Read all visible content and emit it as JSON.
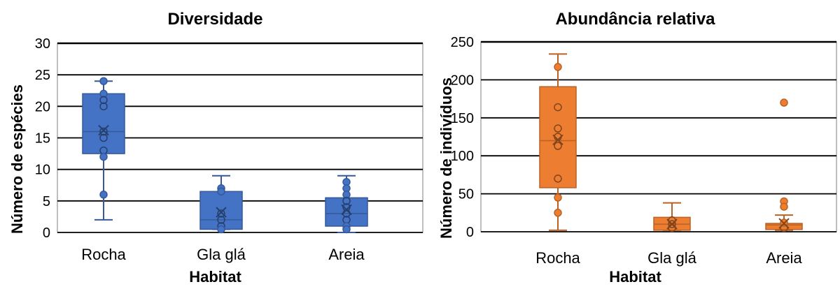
{
  "chart_data": [
    {
      "type": "box",
      "title": "Diversidade",
      "xlabel": "Habitat",
      "ylabel": "Número de espécies",
      "ylim": [
        0,
        30
      ],
      "yticks": [
        0,
        5,
        10,
        15,
        20,
        25,
        30
      ],
      "grid": true,
      "color": "#4472C4",
      "categories": [
        "Rocha",
        "Gla glá",
        "Areia"
      ],
      "boxes": [
        {
          "min": 2,
          "q1": 12.5,
          "median": 16,
          "q3": 22,
          "max": 24,
          "mean": 16.2,
          "points": [
            24,
            22,
            21,
            20,
            16,
            15,
            13,
            12,
            6
          ]
        },
        {
          "min": 0.5,
          "q1": 0.5,
          "median": 2,
          "q3": 6.5,
          "max": 9,
          "mean": 3.2,
          "points": [
            7,
            6.5,
            3,
            2,
            1,
            0.5
          ]
        },
        {
          "min": 0,
          "q1": 1,
          "median": 3,
          "q3": 5.5,
          "max": 9,
          "mean": 3.6,
          "points": [
            8,
            7,
            6,
            5,
            4,
            3,
            2,
            1,
            0.5
          ]
        }
      ]
    },
    {
      "type": "box",
      "title": "Abundância relativa",
      "xlabel": "Habitat",
      "ylabel": "Número de indivíduos",
      "ylim": [
        0,
        250
      ],
      "yticks": [
        0,
        50,
        100,
        150,
        200,
        250
      ],
      "grid": true,
      "color": "#ED7D31",
      "categories": [
        "Rocha",
        "Gla glá",
        "Areia"
      ],
      "boxes": [
        {
          "min": 2,
          "q1": 58,
          "median": 120,
          "q3": 191,
          "max": 234,
          "mean": 121,
          "points": [
            217,
            164,
            136,
            125,
            113,
            70,
            45,
            25
          ]
        },
        {
          "min": 2,
          "q1": 2,
          "median": 10,
          "q3": 19,
          "max": 38,
          "mean": 10,
          "points": [
            15,
            10,
            5
          ]
        },
        {
          "min": 2,
          "q1": 3,
          "median": 9,
          "q3": 11,
          "max": 22,
          "mean": 11,
          "points": [
            170,
            40,
            33,
            12,
            5
          ]
        }
      ]
    }
  ]
}
